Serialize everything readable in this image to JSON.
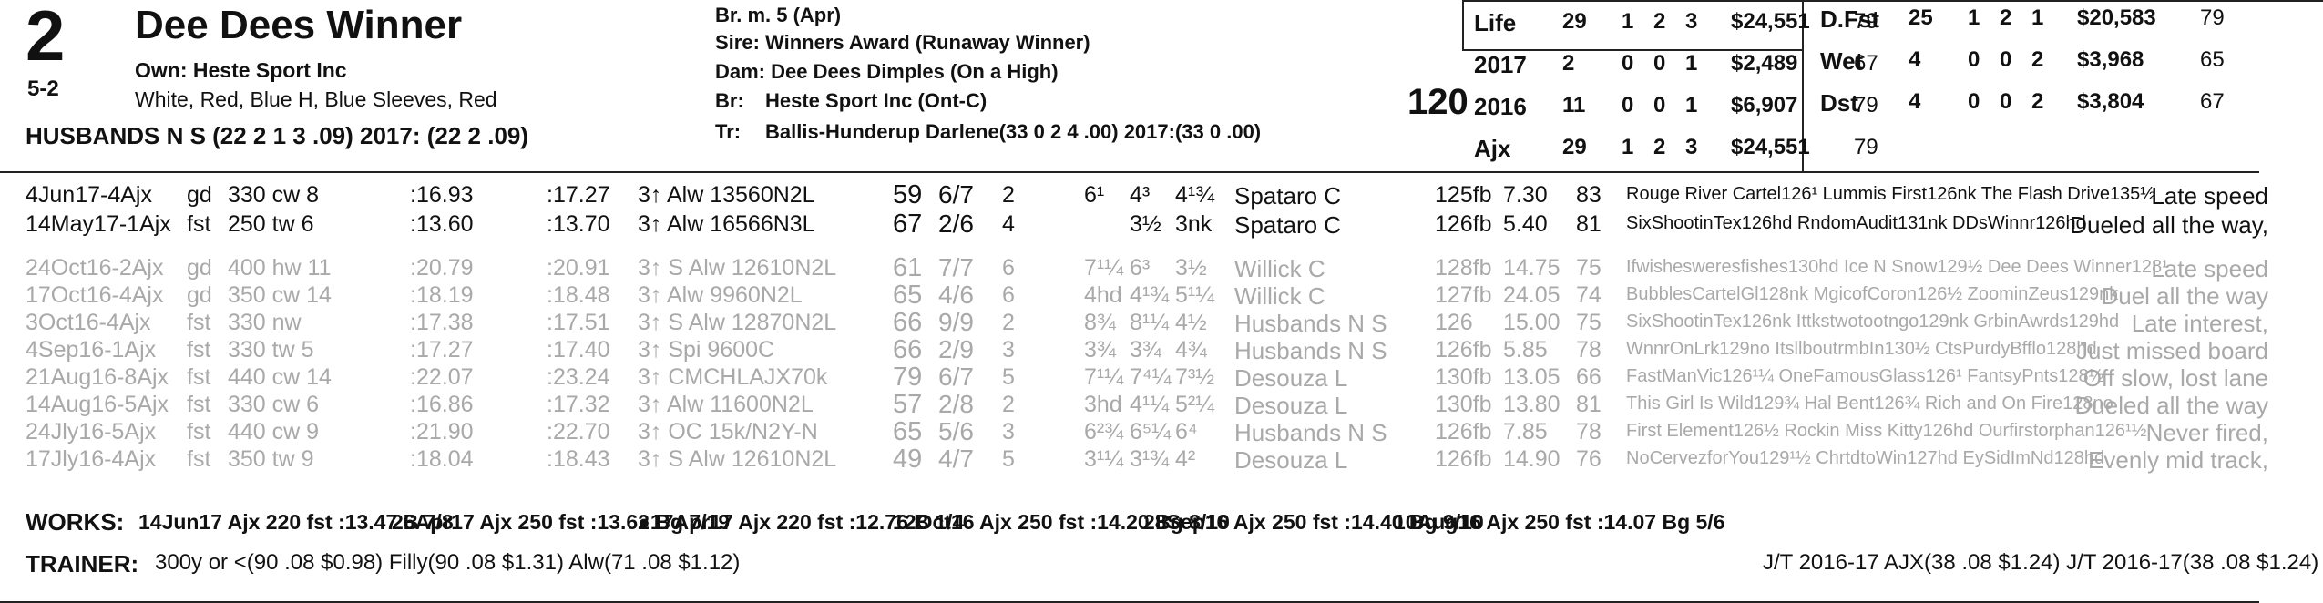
{
  "horse": {
    "program_number": "2",
    "name": "Dee Dees Winner",
    "odds": "5-2",
    "owner": "Own: Heste Sport Inc",
    "silks": "White, Red, Blue H, Blue Sleeves, Red",
    "jockey_line": "HUSBANDS N S (22 2 1 3 .09) 2017: (22 2 .09)"
  },
  "breeding": {
    "sex_age": "Br. m. 5 (Apr)",
    "sire": "Sire: Winners Award (Runaway Winner)",
    "dam": "Dam: Dee Dees Dimples (On a High)",
    "breeder_label": "Br:",
    "breeder": "Heste Sport Inc (Ont-C)",
    "trainer_label": "Tr:",
    "trainer": "Ballis-Hunderup Darlene(33 0 2 4 .00) 2017:(33 0 .00)",
    "weight": "120"
  },
  "stats_left": [
    {
      "label": "Life",
      "st": "29",
      "w": "1",
      "p": "2",
      "s": "3",
      "earn": "$24,551",
      "fig": "79"
    },
    {
      "label": "2017",
      "st": "2",
      "w": "0",
      "p": "0",
      "s": "1",
      "earn": "$2,489",
      "fig": "67"
    },
    {
      "label": "2016",
      "st": "11",
      "w": "0",
      "p": "0",
      "s": "1",
      "earn": "$6,907",
      "fig": "79"
    },
    {
      "label": "Ajx",
      "st": "29",
      "w": "1",
      "p": "2",
      "s": "3",
      "earn": "$24,551",
      "fig": "79"
    }
  ],
  "stats_right": [
    {
      "label": "D.Fst",
      "st": "25",
      "w": "1",
      "p": "2",
      "s": "1",
      "earn": "$20,583",
      "fig": "79"
    },
    {
      "label": "Wet",
      "st": "4",
      "w": "0",
      "p": "0",
      "s": "2",
      "earn": "$3,968",
      "fig": "65"
    },
    {
      "label": "Dst",
      "st": "4",
      "w": "0",
      "p": "0",
      "s": "2",
      "earn": "$3,804",
      "fig": "67"
    }
  ],
  "races": [
    {
      "date": "4Jun17-4Ajx",
      "cond": "gd",
      "dist": "330 cw 8",
      "t1": ":16.93",
      "t2": ":17.27",
      "cls": "3↑ Alw 13560N2L",
      "fig": "59",
      "post": "6/7",
      "st": "2",
      "c1": "6¹",
      "c2": "4³",
      "fin": "4¹¾",
      "jockey": "Spataro C",
      "wt": "125fb",
      "odds": "7.30",
      "sp": "83",
      "comment": "Rouge River Cartel126¹ Lummis First126nk The Flash Drive135½",
      "trip": "Late speed",
      "recent": true
    },
    {
      "date": "14May17-1Ajx",
      "cond": "fst",
      "dist": "250 tw 6",
      "t1": ":13.60",
      "t2": ":13.70",
      "cls": "3↑ Alw 16566N3L",
      "fig": "67",
      "post": "2/6",
      "st": "4",
      "c1": "",
      "c2": "3½",
      "fin": "3nk",
      "jockey": "Spataro C",
      "wt": "126fb",
      "odds": "5.40",
      "sp": "81",
      "comment": "SixShootinTex126hd RndomAudit131nk DDsWinnr126hd",
      "trip": "Dueled all the way,",
      "recent": true
    },
    {
      "date": "24Oct16-2Ajx",
      "cond": "gd",
      "dist": "400 hw 11",
      "t1": ":20.79",
      "t2": ":20.91",
      "cls": "3↑ S Alw 12610N2L",
      "fig": "61",
      "post": "7/7",
      "st": "6",
      "c1": "7¹¼",
      "c2": "6³",
      "fin": "3½",
      "jockey": "Willick C",
      "wt": "128fb",
      "odds": "14.75",
      "sp": "75",
      "comment": "Ifwishesweresfishes130hd Ice N Snow129½ Dee Dees Winner128¹",
      "trip": "Late speed",
      "recent": false
    },
    {
      "date": "17Oct16-4Ajx",
      "cond": "gd",
      "dist": "350 cw 14",
      "t1": ":18.19",
      "t2": ":18.48",
      "cls": "3↑ Alw 9960N2L",
      "fig": "65",
      "post": "4/6",
      "st": "6",
      "c1": "4hd",
      "c2": "4¹¾",
      "fin": "5¹¼",
      "jockey": "Willick C",
      "wt": "127fb",
      "odds": "24.05",
      "sp": "74",
      "comment": "BubblesCartelGl128nk MgicofCoron126½ ZoominZeus129nk",
      "trip": "Duel all the way",
      "recent": false
    },
    {
      "date": "3Oct16-4Ajx",
      "cond": "fst",
      "dist": "330 nw",
      "t1": ":17.38",
      "t2": ":17.51",
      "cls": "3↑ S Alw 12870N2L",
      "fig": "66",
      "post": "9/9",
      "st": "2",
      "c1": "8¾",
      "c2": "8¹¼",
      "fin": "4½",
      "jockey": "Husbands N S",
      "wt": "126",
      "odds": "15.00",
      "sp": "75",
      "comment": "SixShootinTex126nk Ittkstwotootngo129nk GrbinAwrds129hd",
      "trip": "Late interest,",
      "recent": false
    },
    {
      "date": "4Sep16-1Ajx",
      "cond": "fst",
      "dist": "330 tw 5",
      "t1": ":17.27",
      "t2": ":17.40",
      "cls": "3↑ Spi 9600C",
      "fig": "66",
      "post": "2/9",
      "st": "3",
      "c1": "3¾",
      "c2": "3¾",
      "fin": "4¾",
      "jockey": "Husbands N S",
      "wt": "126fb",
      "odds": "5.85",
      "sp": "78",
      "comment": "WnnrOnLrk129no ItsllboutrmbIn130½ CtsPurdyBfflo128hd",
      "trip": "Just missed board",
      "recent": false
    },
    {
      "date": "21Aug16-8Ajx",
      "cond": "fst",
      "dist": "440 cw 14",
      "t1": ":22.07",
      "t2": ":23.24",
      "cls": "3↑ CMCHLAJX70k",
      "fig": "79",
      "post": "6/7",
      "st": "5",
      "c1": "7¹¼",
      "c2": "7⁴¼",
      "fin": "7³½",
      "jockey": "Desouza L",
      "wt": "130fb",
      "odds": "13.05",
      "sp": "66",
      "comment": "FastManVic126¹¼ OneFamousGlass126¹ FantsyPnts128½",
      "trip": "Off slow, lost lane",
      "recent": false
    },
    {
      "date": "14Aug16-5Ajx",
      "cond": "fst",
      "dist": "330 cw 6",
      "t1": ":16.86",
      "t2": ":17.32",
      "cls": "3↑ Alw 11600N2L",
      "fig": "57",
      "post": "2/8",
      "st": "2",
      "c1": "3hd",
      "c2": "4¹¼",
      "fin": "5²¼",
      "jockey": "Desouza L",
      "wt": "130fb",
      "odds": "13.80",
      "sp": "81",
      "comment": "This Girl Is Wild129¾ Hal Bent126¾ Rich and On Fire128no",
      "trip": "Dueled all the way",
      "recent": false
    },
    {
      "date": "24Jly16-5Ajx",
      "cond": "fst",
      "dist": "440 cw 9",
      "t1": ":21.90",
      "t2": ":22.70",
      "cls": "3↑ OC 15k/N2Y-N",
      "fig": "65",
      "post": "5/6",
      "st": "3",
      "c1": "6²¾",
      "c2": "6⁵¼",
      "fin": "6⁴",
      "jockey": "Husbands N S",
      "wt": "126fb",
      "odds": "7.85",
      "sp": "78",
      "comment": "First Element126½ Rockin Miss Kitty126hd Ourfirstorphan126¹½",
      "trip": "Never fired,",
      "recent": false
    },
    {
      "date": "17Jly16-4Ajx",
      "cond": "fst",
      "dist": "350 tw 9",
      "t1": ":18.04",
      "t2": ":18.43",
      "cls": "3↑ S Alw 12610N2L",
      "fig": "49",
      "post": "4/7",
      "st": "5",
      "c1": "3¹¼",
      "c2": "3¹¾",
      "fin": "4²",
      "jockey": "Desouza L",
      "wt": "126fb",
      "odds": "14.90",
      "sp": "76",
      "comment": "NoCervezforYou129¹½ ChrtdtoWin127hd EySidImNd128hd",
      "trip": "Evenly mid track,",
      "recent": false
    }
  ],
  "works": {
    "label": "WORKS:",
    "entries": [
      "14Jun17 Ajx 220 fst :13.47 B 7/8",
      "26Apr17 Ajx 250 fst :13.62 Bg 7/19",
      "●17Apr17 Ajx 220 fst :12.76 B 1/4",
      "12Oct16 Ajx 250 fst :14.20 Bg 8/10",
      "28Sep16 Ajx 250 fst :14.40 Bg 9/10",
      "10Aug16 Ajx 250 fst :14.07 Bg 5/6"
    ]
  },
  "trainer_stats": {
    "label": "TRAINER:",
    "text": "300y or <(90 .08 $0.98) Filly(90 .08 $1.31) Alw(71 .08 $1.12)",
    "jt": "J/T 2016-17 AJX(38 .08 $1.24) J/T 2016-17(38 .08 $1.24)"
  }
}
